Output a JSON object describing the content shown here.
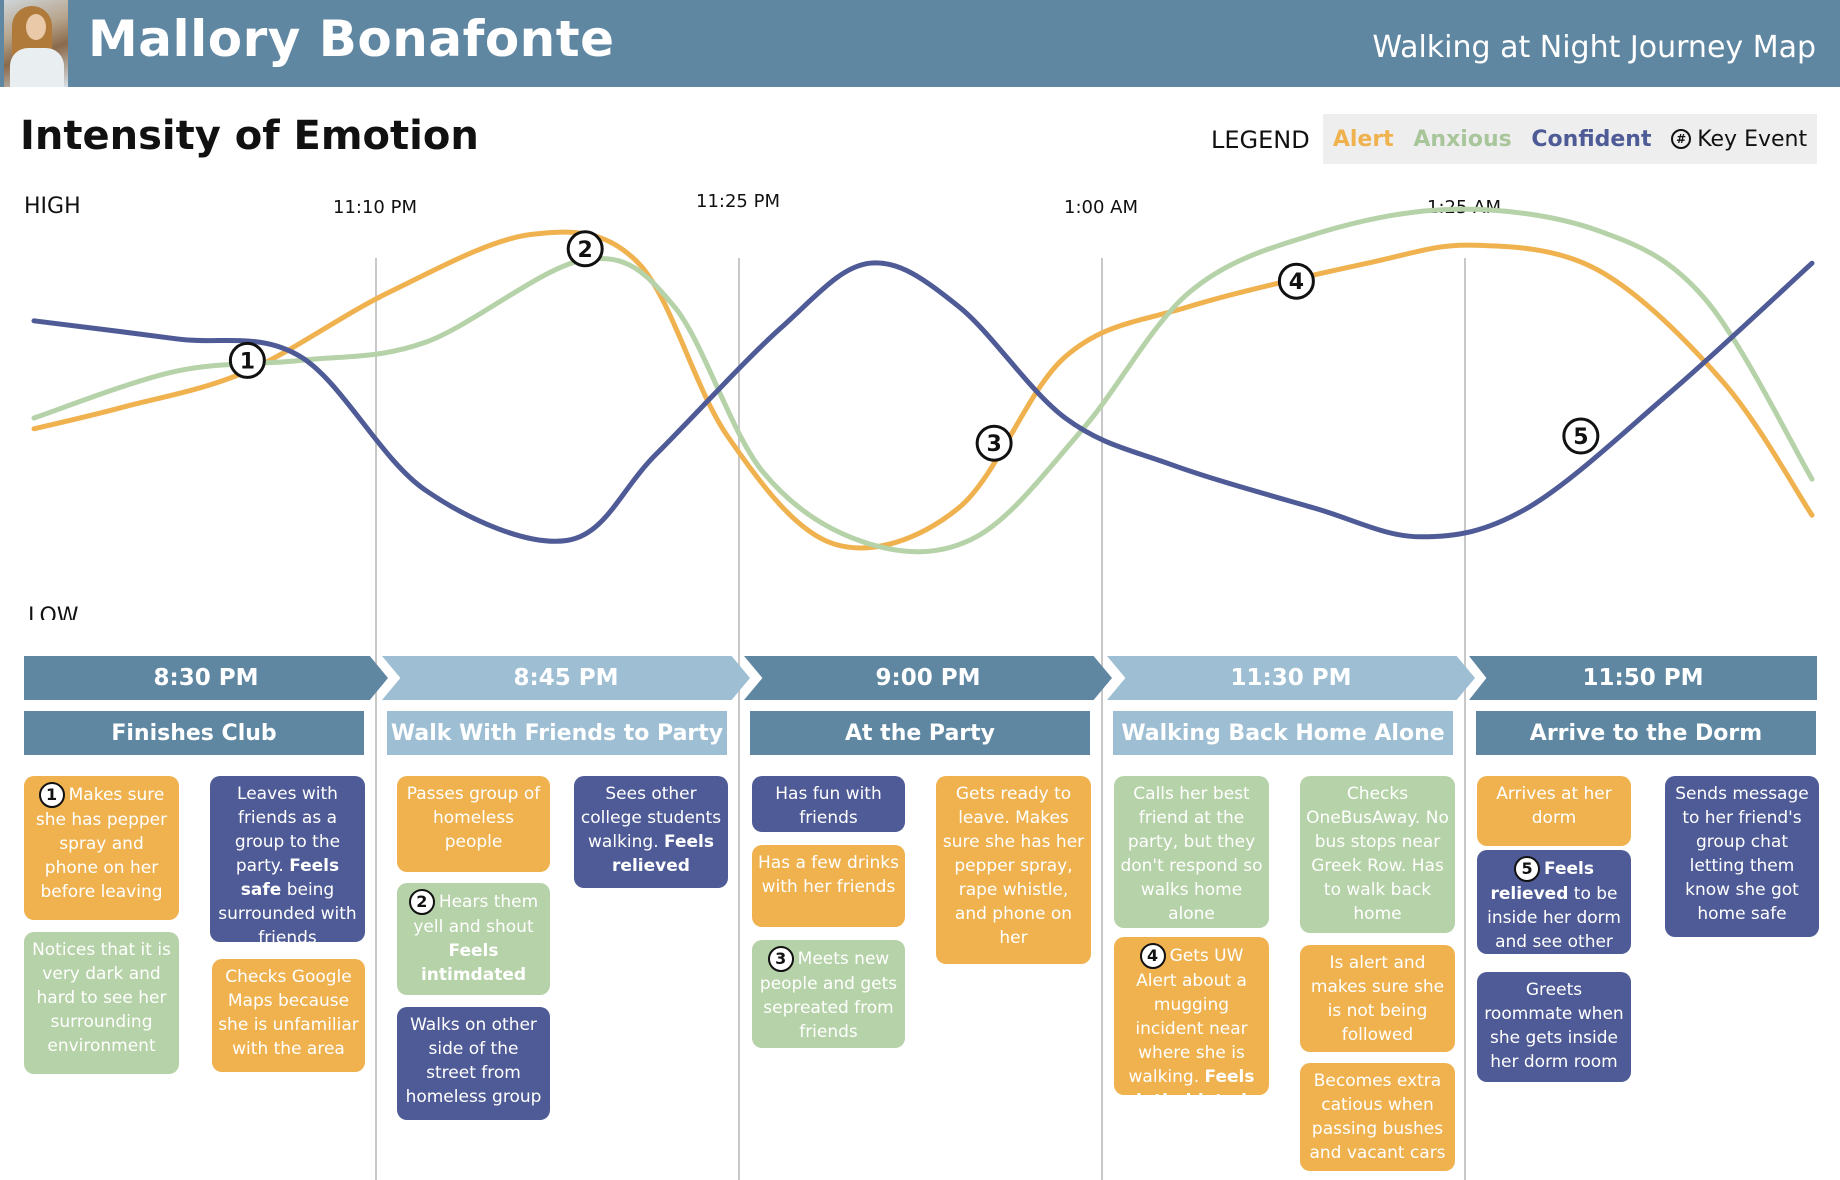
{
  "header": {
    "name": "Mallory Bonafonte",
    "map_title": "Walking at Night Journey Map"
  },
  "section_title": "Intensity of Emotion",
  "legend": {
    "label": "LEGEND",
    "alert": "Alert",
    "anxious": "Anxious",
    "confident": "Confident",
    "key_event_symbol": "#",
    "key_event": "Key Event"
  },
  "colors": {
    "header_bg": "#5f87a2",
    "alert": "#efb24f",
    "anxious": "#b6d2a8",
    "confident": "#4f5b96",
    "stage_light": "#9dbed3"
  },
  "chart_data": {
    "type": "line",
    "y_high_label": "HIGH",
    "y_low_label": "LOW",
    "time_markers": [
      "11:10 PM",
      "11:25 PM",
      "1:00 AM",
      "1:25 AM"
    ],
    "ylim": [
      0,
      100
    ],
    "series": [
      {
        "name": "Alert",
        "color": "#efb24f",
        "points": [
          [
            0,
            42
          ],
          [
            5,
            48
          ],
          [
            12,
            58
          ],
          [
            20,
            80
          ],
          [
            28,
            96
          ],
          [
            34,
            88
          ],
          [
            39,
            40
          ],
          [
            45,
            10
          ],
          [
            52,
            20
          ],
          [
            58,
            62
          ],
          [
            65,
            76
          ],
          [
            75,
            88
          ],
          [
            81,
            93
          ],
          [
            88,
            86
          ],
          [
            95,
            55
          ],
          [
            100,
            18
          ]
        ]
      },
      {
        "name": "Anxious",
        "color": "#b6d2a8",
        "points": [
          [
            0,
            45
          ],
          [
            8,
            58
          ],
          [
            15,
            61
          ],
          [
            22,
            66
          ],
          [
            31,
            89
          ],
          [
            36,
            76
          ],
          [
            41,
            30
          ],
          [
            47,
            10
          ],
          [
            53,
            12
          ],
          [
            59,
            42
          ],
          [
            65,
            80
          ],
          [
            72,
            96
          ],
          [
            80,
            103
          ],
          [
            88,
            97
          ],
          [
            94,
            78
          ],
          [
            100,
            28
          ]
        ]
      },
      {
        "name": "Confident",
        "color": "#4f5b96",
        "points": [
          [
            0,
            72
          ],
          [
            8,
            67
          ],
          [
            15,
            62
          ],
          [
            22,
            25
          ],
          [
            30,
            11
          ],
          [
            35,
            35
          ],
          [
            42,
            70
          ],
          [
            47,
            88
          ],
          [
            52,
            76
          ],
          [
            58,
            45
          ],
          [
            64,
            32
          ],
          [
            72,
            20
          ],
          [
            78,
            12
          ],
          [
            84,
            20
          ],
          [
            92,
            52
          ],
          [
            100,
            88
          ]
        ]
      }
    ],
    "key_events": [
      {
        "label": "1",
        "x": 12,
        "y": 61
      },
      {
        "label": "2",
        "x": 31,
        "y": 92
      },
      {
        "label": "3",
        "x": 54,
        "y": 38
      },
      {
        "label": "4",
        "x": 71,
        "y": 83
      },
      {
        "label": "5",
        "x": 87,
        "y": 40
      }
    ]
  },
  "timeline": [
    {
      "time": "8:30 PM",
      "stage": "Finishes Club"
    },
    {
      "time": "8:45 PM",
      "stage": "Walk With Friends to Party"
    },
    {
      "time": "9:00 PM",
      "stage": "At the Party"
    },
    {
      "time": "11:30 PM",
      "stage": "Walking Back Home Alone"
    },
    {
      "time": "11:50 PM",
      "stage": "Arrive to the Dorm"
    }
  ],
  "cards": {
    "c1a": {
      "badge": "1",
      "text": "Makes sure she has pepper spray and phone on her before leaving"
    },
    "c1b": {
      "text": "Notices that it is very dark and hard to see her surrounding environment"
    },
    "c1c": {
      "text": "Leaves with friends as a group to the party.",
      "bold": "Feels safe",
      "tail": "being surrounded with friends"
    },
    "c1d": {
      "text": "Checks Google Maps because she is unfamiliar with the area"
    },
    "c2a": {
      "text": "Passes group of homeless people"
    },
    "c2b": {
      "badge": "2",
      "text": "Hears them yell and shout",
      "bold": "Feels intimdated"
    },
    "c2c": {
      "text": "Walks on other side of the street from homeless group"
    },
    "c2d": {
      "text": "Sees other college students walking.",
      "bold": "Feels relieved"
    },
    "c3a": {
      "text": "Has fun with friends"
    },
    "c3b": {
      "text": "Has a few drinks with her friends"
    },
    "c3c": {
      "badge": "3",
      "text": "Meets new people and gets sepreated from friends"
    },
    "c3d": {
      "text": "Gets ready to leave. Makes sure she has her pepper spray, rape whistle, and phone on her"
    },
    "c4a": {
      "text": "Calls her best friend at the party, but they don't respond so walks home alone"
    },
    "c4b": {
      "badge": "4",
      "text": "Gets UW Alert about a mugging incident near where she is walking.",
      "bold": "Feels intimidated"
    },
    "c4c": {
      "text": "Checks OneBusAway. No bus stops near Greek Row. Has to walk back home"
    },
    "c4d": {
      "text": "Is alert and makes sure she is not being followed"
    },
    "c4e": {
      "text": "Becomes extra catious when passing bushes and vacant cars"
    },
    "c5a": {
      "text": "Arrives at her dorm"
    },
    "c5b": {
      "badge": "5",
      "bold": "Feels relieved",
      "text": "to be inside her dorm and see other students"
    },
    "c5c": {
      "text": "Greets roommate when she gets inside her dorm room"
    },
    "c5d": {
      "text": "Sends message to her friend's group chat letting them know she got home safe"
    }
  }
}
